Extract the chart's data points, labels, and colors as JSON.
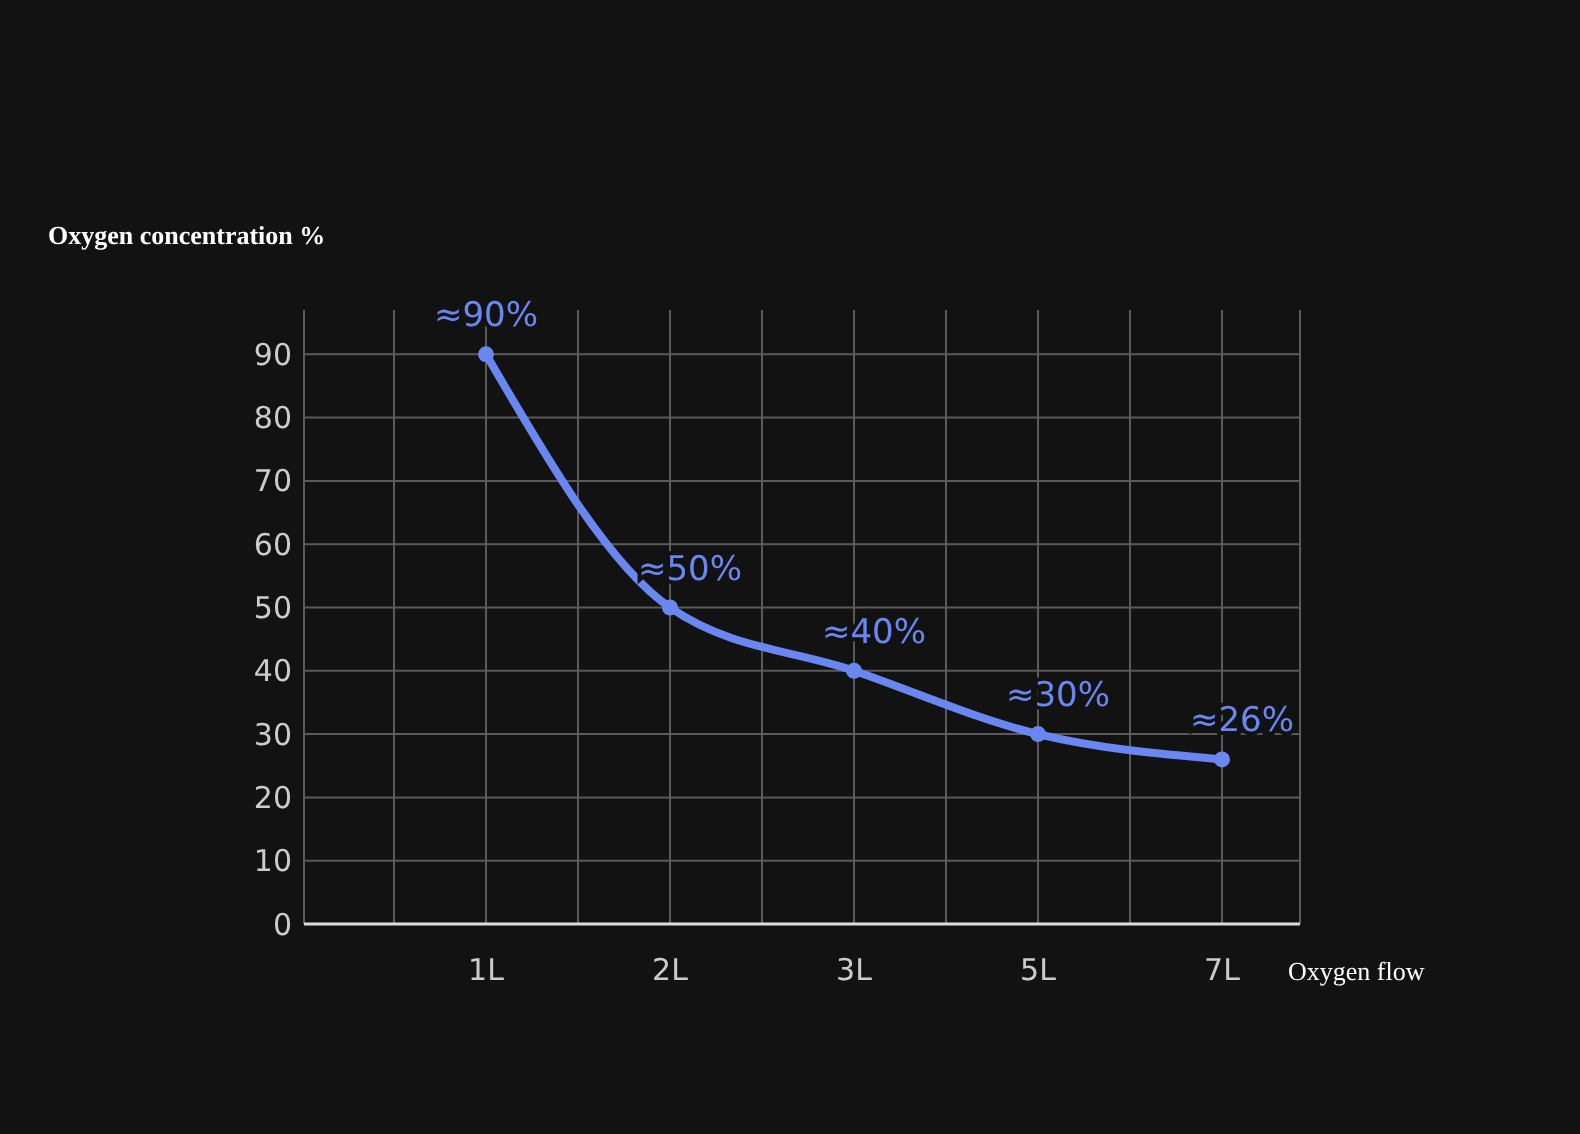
{
  "chart_data": {
    "type": "line",
    "xlabel": "Oxygen flow",
    "ylabel": "Oxygen concentration %",
    "categories": [
      "1L",
      "2L",
      "3L",
      "5L",
      "7L"
    ],
    "series": [
      {
        "color": "#6a86f0",
        "values": [
          90,
          50,
          40,
          30,
          26
        ],
        "value_labels": [
          "≈90%",
          "≈50%",
          "≈40%",
          "≈30%",
          "≈26%"
        ]
      }
    ],
    "ylim": [
      0,
      97
    ],
    "yticks": [
      0,
      10,
      20,
      30,
      40,
      50,
      60,
      70,
      80,
      90
    ],
    "grid": true,
    "marker": "circle",
    "line_style": "solid"
  }
}
